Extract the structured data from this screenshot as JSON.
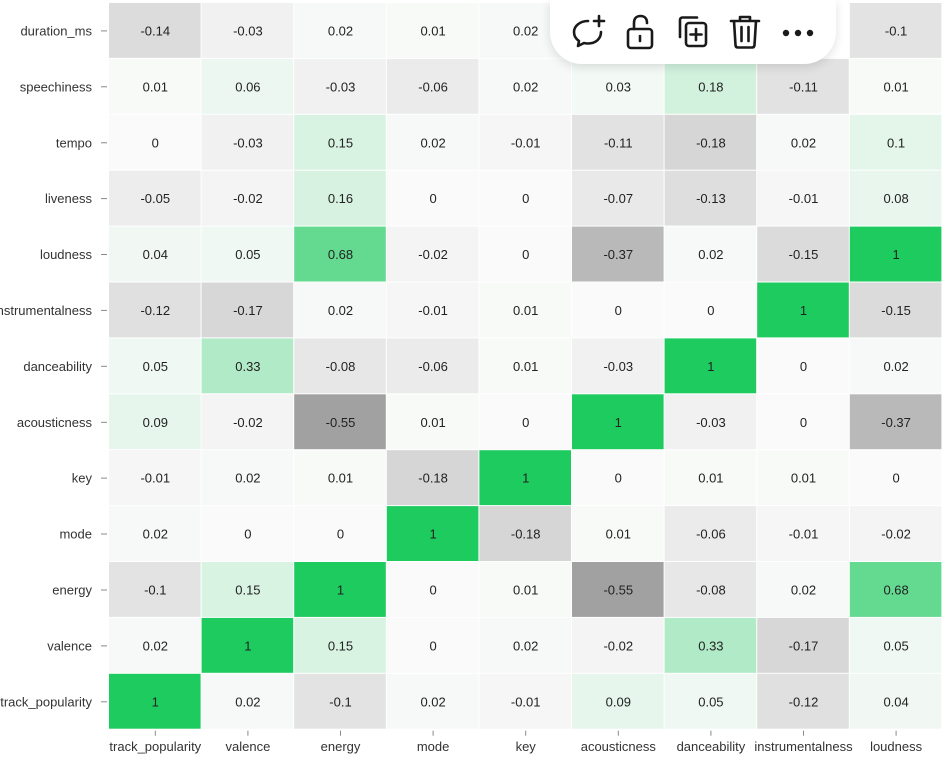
{
  "toolbar": {
    "items": [
      {
        "icon": "add-comment-icon"
      },
      {
        "icon": "unlock-icon"
      },
      {
        "icon": "duplicate-icon"
      },
      {
        "icon": "trash-icon"
      },
      {
        "icon": "more-icon"
      }
    ]
  },
  "chart_data": {
    "type": "heatmap",
    "x_labels": [
      "track_popularity",
      "valence",
      "energy",
      "mode",
      "key",
      "acousticness",
      "danceability",
      "instrumentalness",
      "loudness"
    ],
    "y_labels": [
      "duration_ms",
      "speechiness",
      "tempo",
      "liveness",
      "loudness",
      "instrumentalness",
      "danceability",
      "acousticness",
      "key",
      "mode",
      "energy",
      "valence",
      "track_popularity"
    ],
    "values": [
      [
        -0.14,
        -0.03,
        0.02,
        0.01,
        0.02,
        null,
        null,
        null,
        -0.1
      ],
      [
        0.01,
        0.06,
        -0.03,
        -0.06,
        0.02,
        0.03,
        0.18,
        -0.11,
        0.01
      ],
      [
        0,
        -0.03,
        0.15,
        0.02,
        -0.01,
        -0.11,
        -0.18,
        0.02,
        0.1
      ],
      [
        -0.05,
        -0.02,
        0.16,
        0,
        0,
        -0.07,
        -0.13,
        -0.01,
        0.08
      ],
      [
        0.04,
        0.05,
        0.68,
        -0.02,
        0,
        -0.37,
        0.02,
        -0.15,
        1
      ],
      [
        -0.12,
        -0.17,
        0.02,
        -0.01,
        0.01,
        0,
        0,
        1,
        -0.15
      ],
      [
        0.05,
        0.33,
        -0.08,
        -0.06,
        0.01,
        -0.03,
        1,
        0,
        0.02
      ],
      [
        0.09,
        -0.02,
        -0.55,
        0.01,
        0,
        1,
        -0.03,
        0,
        -0.37
      ],
      [
        -0.01,
        0.02,
        0.01,
        -0.18,
        1,
        0,
        0.01,
        0.01,
        0
      ],
      [
        0.02,
        0,
        0,
        1,
        -0.18,
        0.01,
        -0.06,
        -0.01,
        -0.02
      ],
      [
        -0.1,
        0.15,
        1,
        0,
        0.01,
        -0.55,
        -0.08,
        0.02,
        0.68
      ],
      [
        0.02,
        1,
        0.15,
        0,
        0.02,
        -0.02,
        0.33,
        -0.17,
        0.05
      ],
      [
        1,
        0.02,
        -0.1,
        0.02,
        -0.01,
        0.09,
        0.05,
        -0.12,
        0.04
      ]
    ],
    "colors": {
      "positive": "#1ecb5e",
      "negative": "#6b6b6b",
      "neutral": "#ffffff"
    },
    "vmin": -1,
    "vmax": 1
  }
}
